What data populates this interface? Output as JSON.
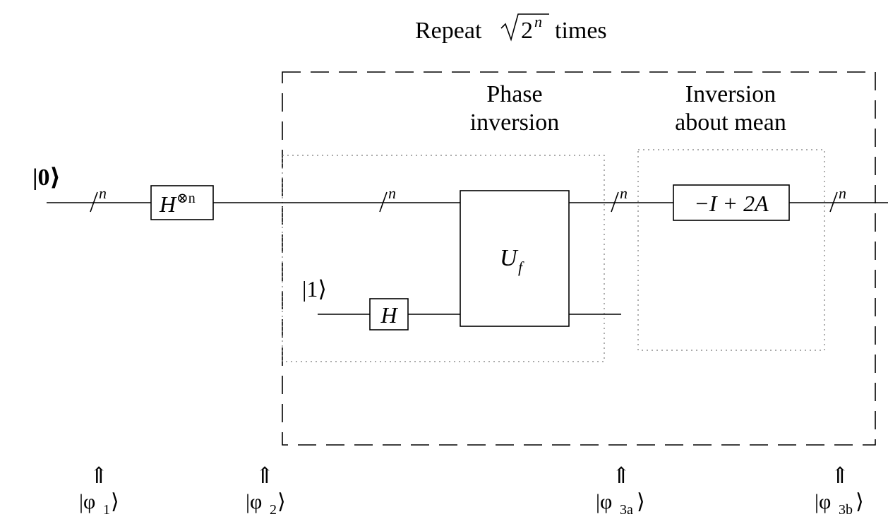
{
  "title": {
    "prefix": "Repeat",
    "radicand_base": "2",
    "radicand_exp": "n",
    "suffix": "times"
  },
  "section_phase": {
    "line1": "Phase",
    "line2": "inversion"
  },
  "section_inversion": {
    "line1": "Inversion",
    "line2": "about mean"
  },
  "inputs": {
    "top_qubit": "|0⟩",
    "ancilla": "|1⟩"
  },
  "register_label": "n",
  "gates": {
    "hadamard_n_base": "H",
    "hadamard_n_sup": "⊗n",
    "hadamard": "H",
    "oracle_base": "U",
    "oracle_sub": "f",
    "inversion_op": "−I + 2A"
  },
  "states": [
    {
      "arrow": "⇑",
      "label_base": "|φ",
      "label_sub": "1",
      "label_end": "⟩"
    },
    {
      "arrow": "⇑",
      "label_base": "|φ",
      "label_sub": "2",
      "label_end": "⟩"
    },
    {
      "arrow": "⇑",
      "label_base": "|φ",
      "label_sub": "3a",
      "label_end": "⟩"
    },
    {
      "arrow": "⇑",
      "label_base": "|φ",
      "label_sub": "3b",
      "label_end": "⟩"
    }
  ]
}
